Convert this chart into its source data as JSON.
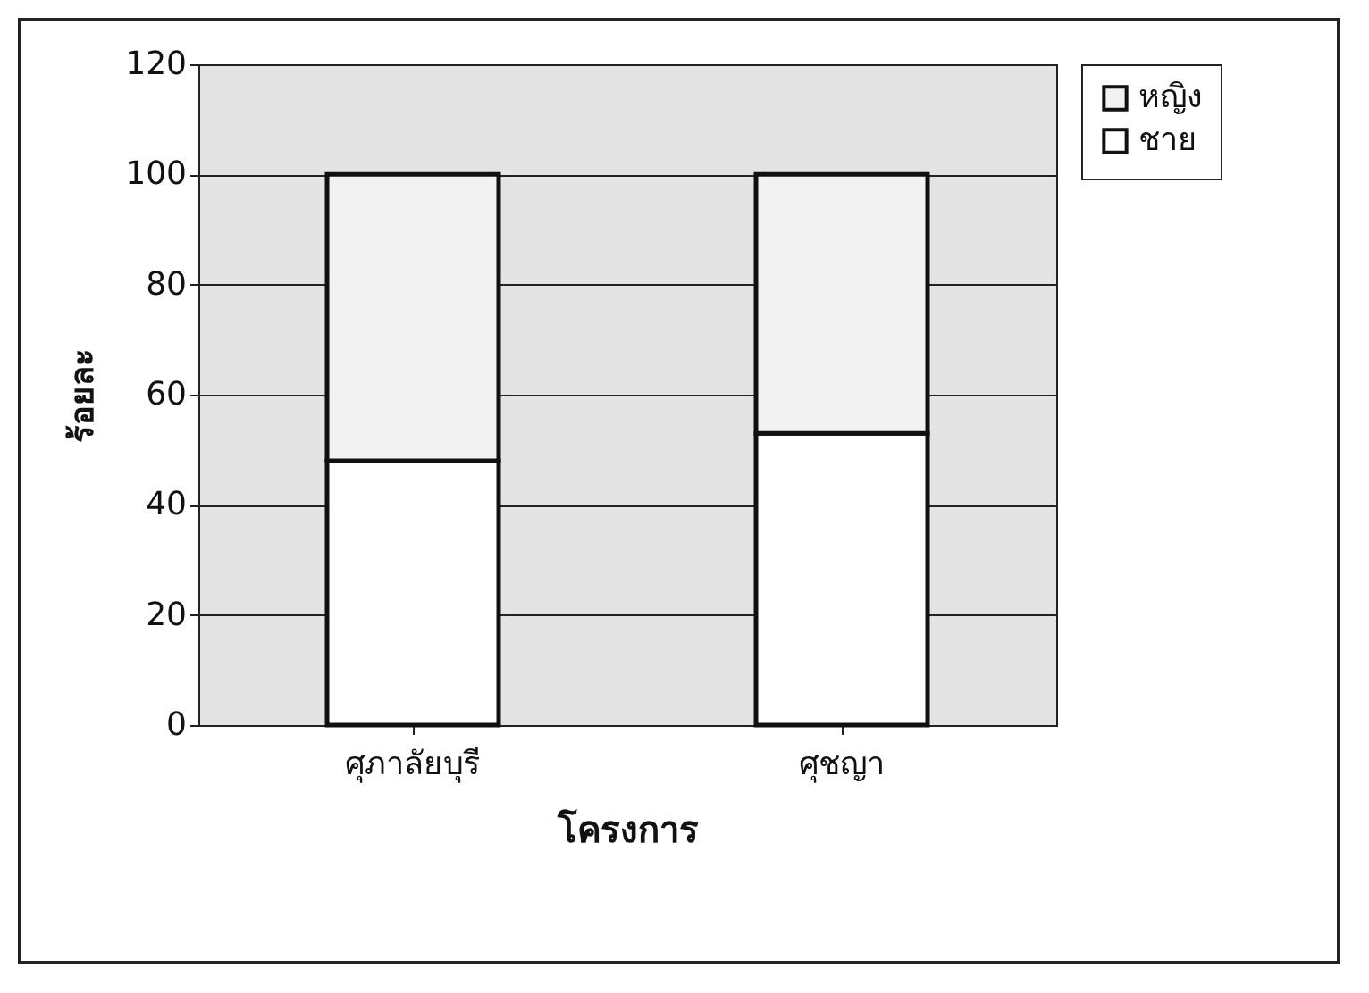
{
  "chart_data": {
    "type": "bar",
    "stacked": true,
    "xlabel": "โครงการ",
    "ylabel": "ร้อยละ",
    "categories": [
      "ศุภาลัยบุรี",
      "ศุชญา"
    ],
    "series": [
      {
        "name": "ชาย",
        "color": "#ffffff",
        "values": [
          48,
          53
        ]
      },
      {
        "name": "หญิง",
        "color": "#f2f2f2",
        "values": [
          52,
          47
        ]
      }
    ],
    "ylim": [
      0,
      120
    ],
    "yticks": [
      0,
      20,
      40,
      60,
      80,
      100,
      120
    ],
    "grid": "y",
    "legend": "right"
  }
}
